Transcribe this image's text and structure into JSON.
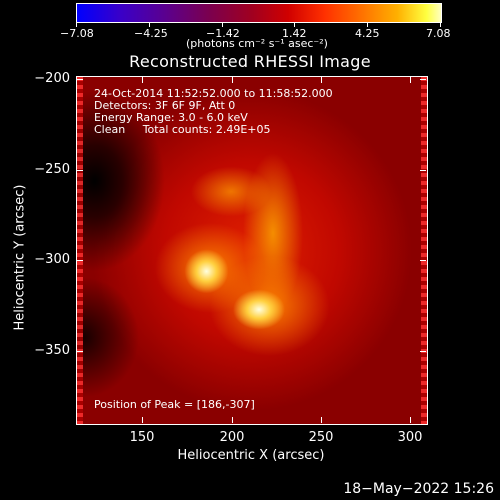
{
  "colorbar": {
    "tick_labels": [
      "−7.08",
      "−4.25",
      "−1.42",
      "1.42",
      "4.25",
      "7.08"
    ],
    "units": "(photons cm⁻² s⁻¹ asec⁻²)",
    "colors": {
      "low": "#0000ff",
      "mid": "#d00000",
      "high": "#ffffc0"
    }
  },
  "plot": {
    "title": "Reconstructed RHESSI Image",
    "info_lines": [
      "24-Oct-2014 11:52:52.000 to 11:58:52.000",
      "Detectors: 3F 6F 9F, Att 0",
      "Energy Range: 3.0 - 6.0 keV",
      "Clean     Total counts: 2.49E+05"
    ],
    "peak_text": "Position of Peak = [186,-307]",
    "x_axis": {
      "label": "Heliocentric X (arcsec)",
      "ticks": [
        "150",
        "200",
        "250",
        "300"
      ]
    },
    "y_axis": {
      "label": "Heliocentric Y (arcsec)",
      "ticks": [
        "−200",
        "−250",
        "−300",
        "−350"
      ]
    }
  },
  "timestamp": "18−May−2022 15:26"
}
